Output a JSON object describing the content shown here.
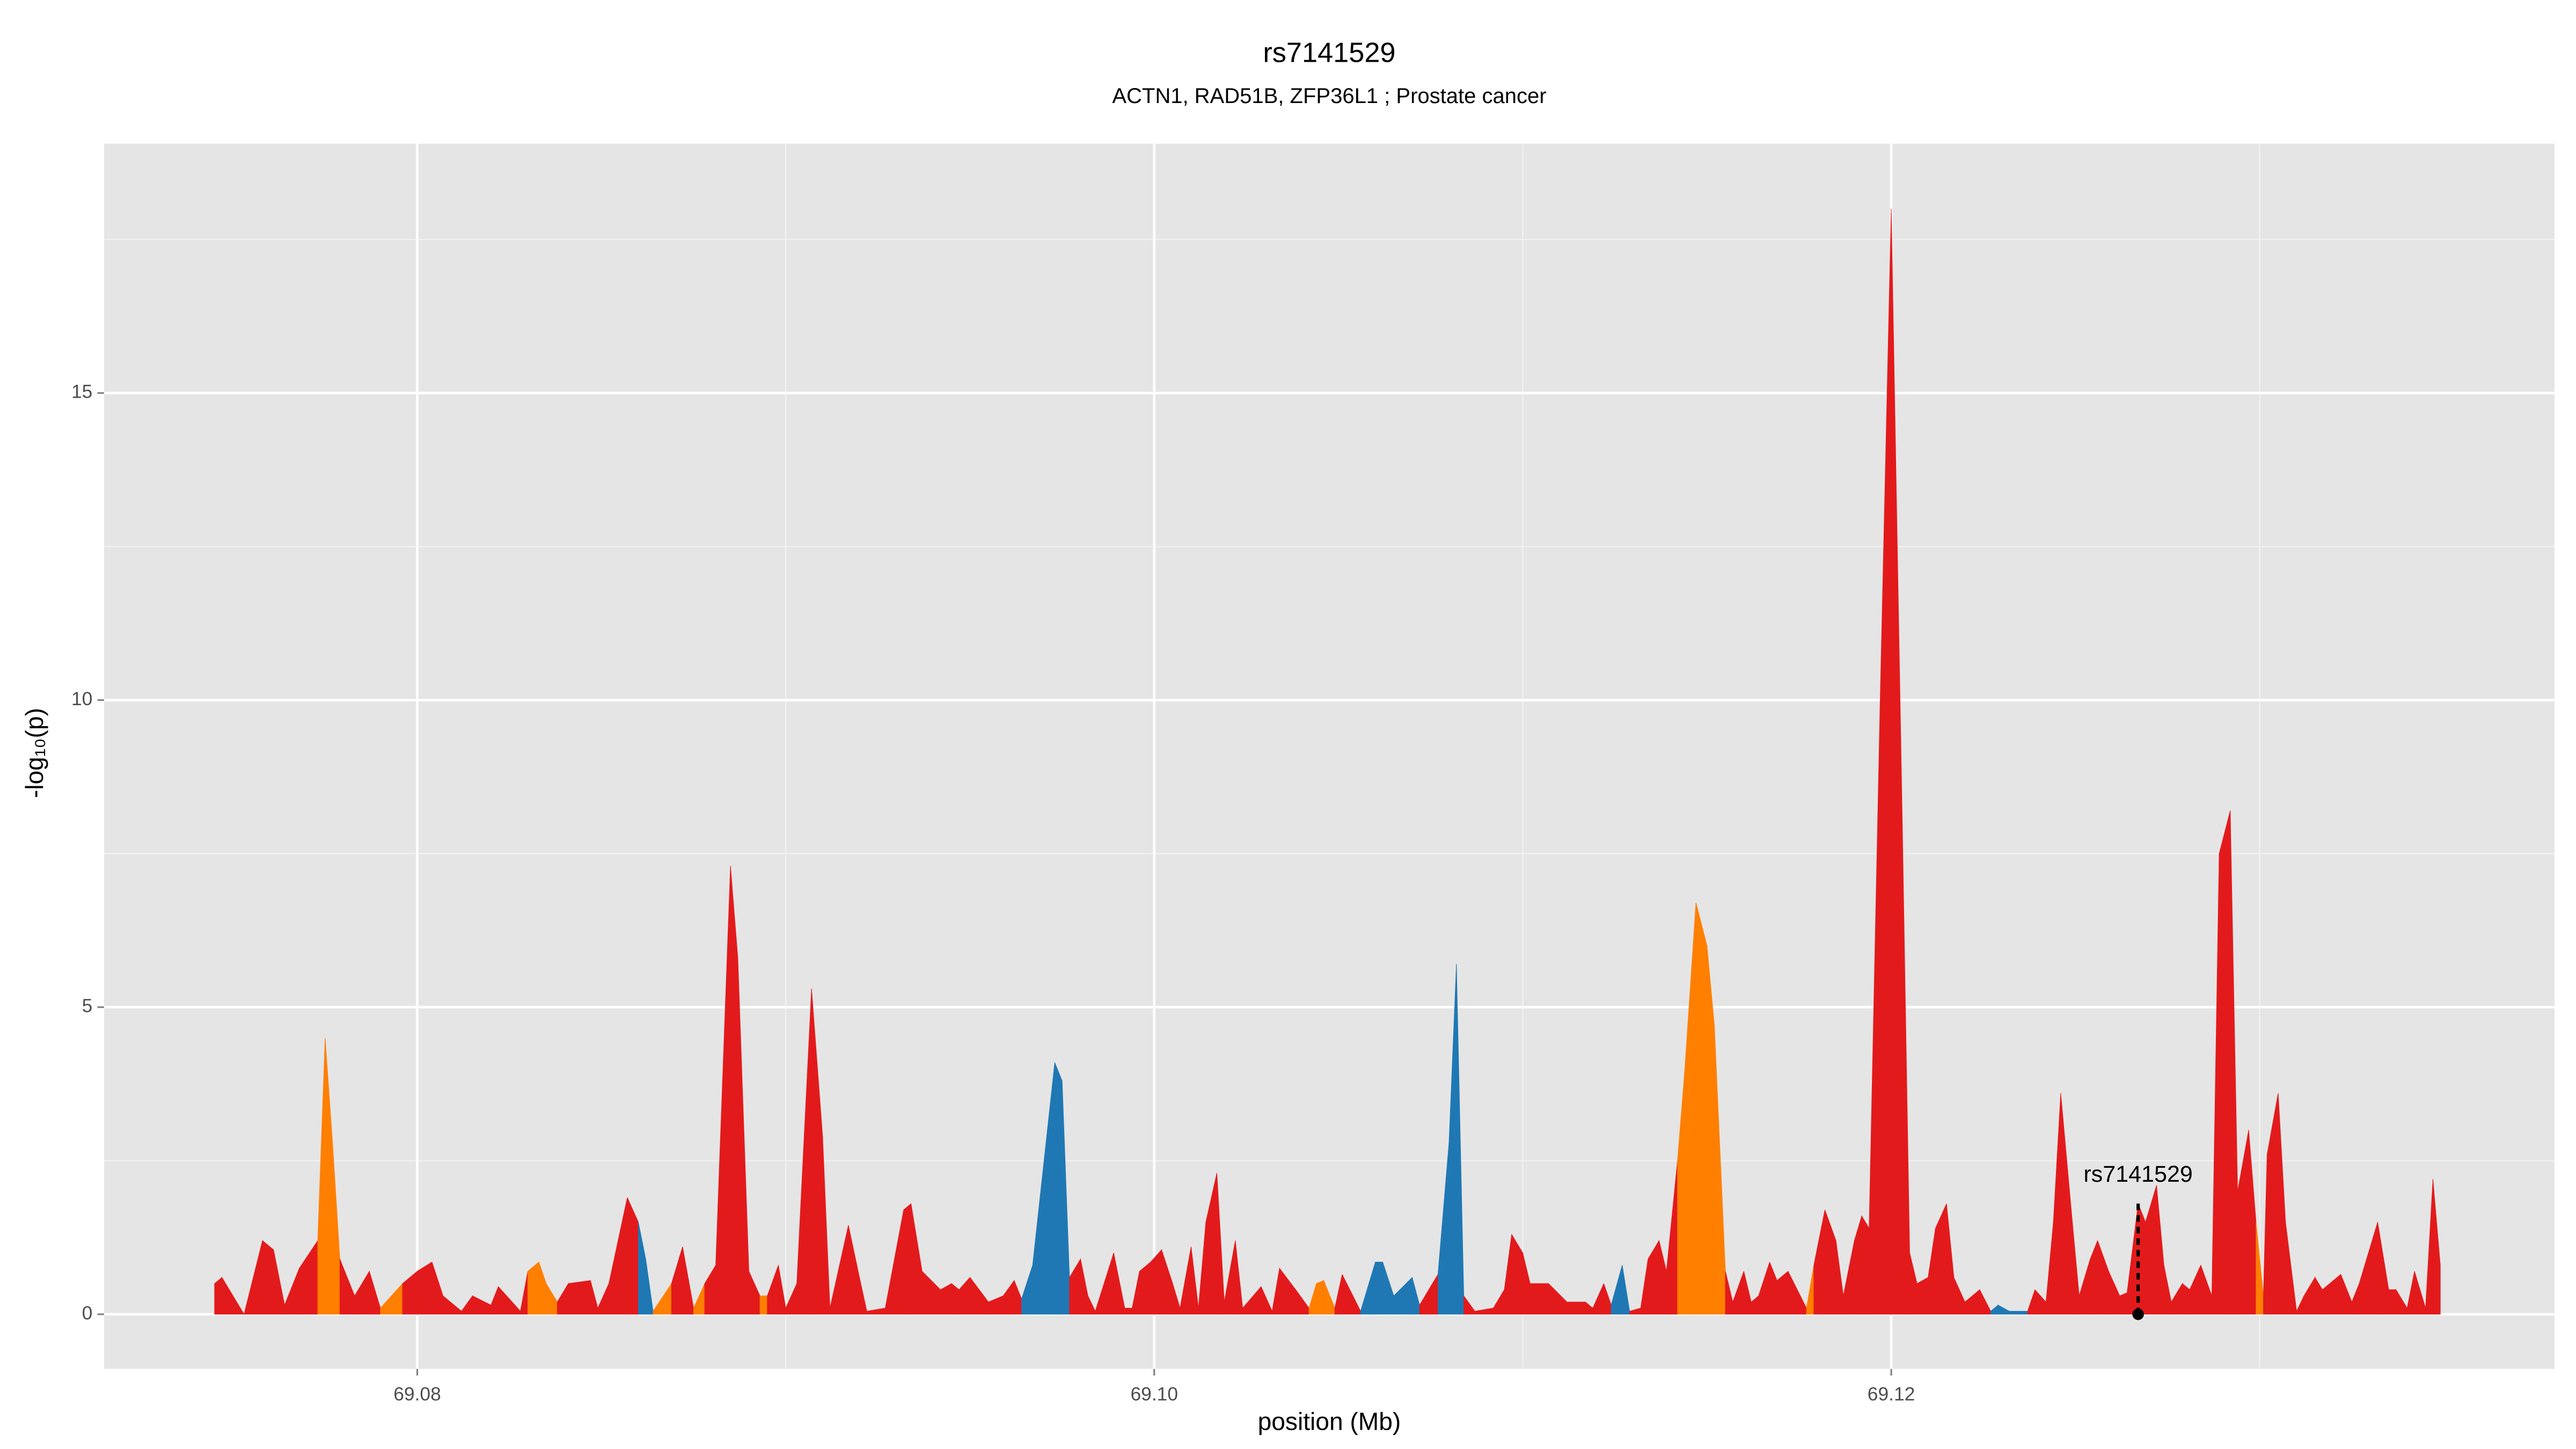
{
  "chart_data": {
    "type": "area",
    "title": "rs7141529",
    "subtitle": "ACTN1, RAD51B, ZFP36L1 ; Prostate cancer",
    "x_label": "position (Mb)",
    "y_label": "-log₁₀(p)",
    "xlim": [
      69.0715,
      69.138
    ],
    "ylim": [
      -0.89,
      19.06
    ],
    "xticks": [
      69.08,
      {
        "value": 69.1,
        "label": "69.10"
      },
      69.12
    ],
    "xminorticks": [
      69.09,
      69.11,
      69.13
    ],
    "yticks": [
      0,
      5,
      10,
      15
    ],
    "yminorticks": [
      2.5,
      7.5,
      12.5,
      17.5
    ],
    "grid": true,
    "x": [
      69.0745,
      69.0747,
      69.0753,
      69.0758,
      69.0761,
      69.0764,
      69.0768,
      69.0773,
      69.0775,
      69.0777,
      69.0779,
      69.0783,
      69.0787,
      69.079,
      69.0796,
      69.08,
      69.0804,
      69.0807,
      69.0812,
      69.0815,
      69.082,
      69.0822,
      69.0828,
      69.083,
      69.0833,
      69.0835,
      69.0838,
      69.0841,
      69.0847,
      69.0849,
      69.0852,
      69.0857,
      69.086,
      69.0862,
      69.0864,
      69.0869,
      69.0872,
      69.0875,
      69.0878,
      69.0881,
      69.0885,
      69.0887,
      69.089,
      69.0893,
      69.0895,
      69.0898,
      69.09,
      69.0903,
      69.0907,
      69.091,
      69.0912,
      69.0917,
      69.092,
      69.0922,
      69.0927,
      69.0932,
      69.0934,
      69.0937,
      69.0942,
      69.0945,
      69.0947,
      69.095,
      69.0955,
      69.0959,
      69.0962,
      69.0964,
      69.0967,
      69.0973,
      69.0975,
      69.0977,
      69.098,
      69.0982,
      69.0984,
      69.0989,
      69.0992,
      69.0994,
      69.0996,
      69.0999,
      69.1002,
      69.1005,
      69.1007,
      69.101,
      69.1012,
      69.1014,
      69.1017,
      69.1019,
      69.1022,
      69.1024,
      69.1029,
      69.1032,
      69.1034,
      69.1039,
      69.1042,
      69.1044,
      69.1046,
      69.1049,
      69.1051,
      69.1056,
      69.106,
      69.1062,
      69.1065,
      69.107,
      69.1072,
      69.1077,
      69.108,
      69.1082,
      69.1084,
      69.1087,
      69.1092,
      69.1095,
      69.1097,
      69.11,
      69.1102,
      69.1107,
      69.1112,
      69.1117,
      69.1119,
      69.1122,
      69.1124,
      69.1127,
      69.1129,
      69.1132,
      69.1134,
      69.1137,
      69.1139,
      69.1142,
      69.1144,
      69.1147,
      69.115,
      69.1152,
      69.1155,
      69.1157,
      69.116,
      69.1162,
      69.1164,
      69.1167,
      69.1169,
      69.1172,
      69.1177,
      69.1179,
      69.1182,
      69.1185,
      69.1187,
      69.119,
      69.1192,
      69.1194,
      69.1197,
      69.12,
      69.1203,
      69.1205,
      69.1207,
      69.121,
      69.1212,
      69.1215,
      69.1217,
      69.122,
      69.1222,
      69.1224,
      69.1227,
      69.1229,
      69.1232,
      69.1237,
      69.1239,
      69.1242,
      69.1244,
      69.1246,
      69.1249,
      69.1251,
      69.1254,
      69.1256,
      69.1259,
      69.1262,
      69.1264,
      69.1267,
      69.1269,
      69.1272,
      69.1274,
      69.1276,
      69.1279,
      69.1281,
      69.1284,
      69.1287,
      69.1289,
      69.1292,
      69.1294,
      69.1297,
      69.1299,
      69.1301,
      69.1302,
      69.1305,
      69.1307,
      69.131,
      69.1312,
      69.1315,
      69.1317,
      69.1322,
      69.1325,
      69.1327,
      69.1332,
      69.1335,
      69.1337,
      69.134,
      69.1342,
      69.1345,
      69.1347,
      69.1349
    ],
    "values": [
      0.5,
      0.6,
      0,
      1.2,
      1.05,
      0.15,
      0.75,
      1.2,
      4.5,
      2.8,
      0.9,
      0.3,
      0.7,
      0.1,
      0.5,
      0.7,
      0.85,
      0.3,
      0.05,
      0.3,
      0.15,
      0.45,
      0.05,
      0.7,
      0.85,
      0.5,
      0.2,
      0.5,
      0.55,
      0.1,
      0.5,
      1.9,
      1.5,
      0.9,
      0.05,
      0.5,
      1.1,
      0.1,
      0.5,
      0.8,
      7.3,
      5.8,
      0.7,
      0.3,
      0.3,
      0.8,
      0.1,
      0.5,
      5.3,
      2.9,
      0.1,
      1.45,
      0.6,
      0.05,
      0.1,
      1.7,
      1.8,
      0.7,
      0.4,
      0.5,
      0.4,
      0.6,
      0.2,
      0.3,
      0.55,
      0.25,
      0.8,
      4.1,
      3.8,
      0.6,
      0.9,
      0.3,
      0.05,
      1.0,
      0.1,
      0.1,
      0.7,
      0.85,
      1.05,
      0.5,
      0.1,
      1.1,
      0.1,
      1.5,
      2.3,
      0.2,
      1.2,
      0.1,
      0.45,
      0.05,
      0.75,
      0.35,
      0.1,
      0.5,
      0.55,
      0.1,
      0.65,
      0.05,
      0.85,
      0.85,
      0.3,
      0.6,
      0.15,
      0.65,
      2.8,
      5.7,
      0.3,
      0.05,
      0.1,
      0.4,
      1.3,
      1.0,
      0.5,
      0.5,
      0.2,
      0.2,
      0.1,
      0.5,
      0.15,
      0.8,
      0.05,
      0.1,
      0.9,
      1.2,
      0.7,
      2.5,
      4.0,
      6.7,
      6.0,
      4.7,
      0.7,
      0.2,
      0.7,
      0.2,
      0.3,
      0.85,
      0.55,
      0.7,
      0.1,
      0.8,
      1.7,
      1.2,
      0.3,
      1.2,
      1.6,
      1.4,
      10,
      18,
      8,
      1.0,
      0.5,
      0.6,
      1.4,
      1.8,
      0.6,
      0.2,
      0.3,
      0.4,
      0.05,
      0.15,
      0.05,
      0.05,
      0.4,
      0.2,
      1.5,
      3.6,
      1.6,
      0.3,
      0.9,
      1.2,
      0.7,
      0.3,
      0.35,
      1.8,
      1.5,
      2.1,
      0.8,
      0.2,
      0.5,
      0.4,
      0.8,
      0.3,
      7.5,
      8.2,
      2.0,
      3.0,
      1.5,
      0.3,
      2.6,
      3.6,
      1.5,
      0.05,
      0.3,
      0.6,
      0.4,
      0.65,
      0.2,
      0.5,
      1.5,
      0.4,
      0.4,
      0.1,
      0.7,
      0.1,
      2.2,
      0.8
    ],
    "colors": [
      "#e31a1c",
      "#e31a1c",
      "#e31a1c",
      "#e31a1c",
      "#e31a1c",
      "#e31a1c",
      "#e31a1c",
      "#e31a1c",
      "#ff7f00",
      "#ff7f00",
      "#e31a1c",
      "#e31a1c",
      "#e31a1c",
      "#e31a1c",
      "#ff7f00",
      "#e31a1c",
      "#e31a1c",
      "#e31a1c",
      "#e31a1c",
      "#e31a1c",
      "#e31a1c",
      "#e31a1c",
      "#e31a1c",
      "#e31a1c",
      "#ff7f00",
      "#ff7f00",
      "#e31a1c",
      "#e31a1c",
      "#e31a1c",
      "#e31a1c",
      "#e31a1c",
      "#e31a1c",
      "#1f78b4",
      "#1f78b4",
      "#e31a1c",
      "#ff7f00",
      "#e31a1c",
      "#e31a1c",
      "#ff7f00",
      "#e31a1c",
      "#e31a1c",
      "#e31a1c",
      "#e31a1c",
      "#ff7f00",
      "#e31a1c",
      "#e31a1c",
      "#e31a1c",
      "#e31a1c",
      "#e31a1c",
      "#e31a1c",
      "#e31a1c",
      "#e31a1c",
      "#e31a1c",
      "#e31a1c",
      "#e31a1c",
      "#e31a1c",
      "#e31a1c",
      "#e31a1c",
      "#e31a1c",
      "#e31a1c",
      "#e31a1c",
      "#e31a1c",
      "#e31a1c",
      "#e31a1c",
      "#e31a1c",
      "#e31a1c",
      "#1f78b4",
      "#1f78b4",
      "#1f78b4",
      "#e31a1c",
      "#e31a1c",
      "#e31a1c",
      "#e31a1c",
      "#e31a1c",
      "#e31a1c",
      "#e31a1c",
      "#e31a1c",
      "#e31a1c",
      "#e31a1c",
      "#e31a1c",
      "#e31a1c",
      "#e31a1c",
      "#e31a1c",
      "#e31a1c",
      "#e31a1c",
      "#e31a1c",
      "#e31a1c",
      "#e31a1c",
      "#e31a1c",
      "#e31a1c",
      "#e31a1c",
      "#e31a1c",
      "#e31a1c",
      "#ff7f00",
      "#ff7f00",
      "#e31a1c",
      "#e31a1c",
      "#e31a1c",
      "#1f78b4",
      "#1f78b4",
      "#e31a1c",
      "#1f78b4",
      "#e31a1c",
      "#e31a1c",
      "#1f78b4",
      "#1f78b4",
      "#e31a1c",
      "#e31a1c",
      "#e31a1c",
      "#e31a1c",
      "#e31a1c",
      "#e31a1c",
      "#e31a1c",
      "#e31a1c",
      "#e31a1c",
      "#e31a1c",
      "#e31a1c",
      "#e31a1c",
      "#e31a1c",
      "#1f78b4",
      "#e31a1c",
      "#e31a1c",
      "#e31a1c",
      "#e31a1c",
      "#e31a1c",
      "#e31a1c",
      "#ff7f00",
      "#ff7f00",
      "#ff7f00",
      "#ff7f00",
      "#e31a1c",
      "#e31a1c",
      "#e31a1c",
      "#e31a1c",
      "#e31a1c",
      "#e31a1c",
      "#e31a1c",
      "#e31a1c",
      "#e31a1c",
      "#ff7f00",
      "#e31a1c",
      "#e31a1c",
      "#e31a1c",
      "#e31a1c",
      "#e31a1c",
      "#e31a1c",
      "#e31a1c",
      "#e31a1c",
      "#e31a1c",
      "#e31a1c",
      "#e31a1c",
      "#e31a1c",
      "#e31a1c",
      "#e31a1c",
      "#e31a1c",
      "#ff7f00",
      "#e31a1c",
      "#e31a1c",
      "#e31a1c",
      "#1f78b4",
      "#1f78b4",
      "#e31a1c",
      "#e31a1c",
      "#e31a1c",
      "#e31a1c",
      "#e31a1c",
      "#e31a1c",
      "#e31a1c",
      "#e31a1c",
      "#e31a1c",
      "#e31a1c",
      "#e31a1c",
      "#e31a1c",
      "#e31a1c",
      "#e31a1c",
      "#e31a1c",
      "#e31a1c",
      "#e31a1c",
      "#e31a1c",
      "#e31a1c",
      "#e31a1c",
      "#e31a1c",
      "#e31a1c",
      "#e31a1c",
      "#e31a1c",
      "#e31a1c",
      "#ff7f00",
      "#ff7f00",
      "#e31a1c",
      "#e31a1c",
      "#e31a1c",
      "#e31a1c",
      "#e31a1c",
      "#e31a1c",
      "#e31a1c",
      "#e31a1c",
      "#e31a1c",
      "#e31a1c",
      "#e31a1c",
      "#e31a1c",
      "#e31a1c",
      "#e31a1c",
      "#e31a1c",
      "#e31a1c",
      "#e31a1c",
      "#e31a1c"
    ],
    "annotation": {
      "label": "rs7141529",
      "x": 69.1267
    }
  }
}
